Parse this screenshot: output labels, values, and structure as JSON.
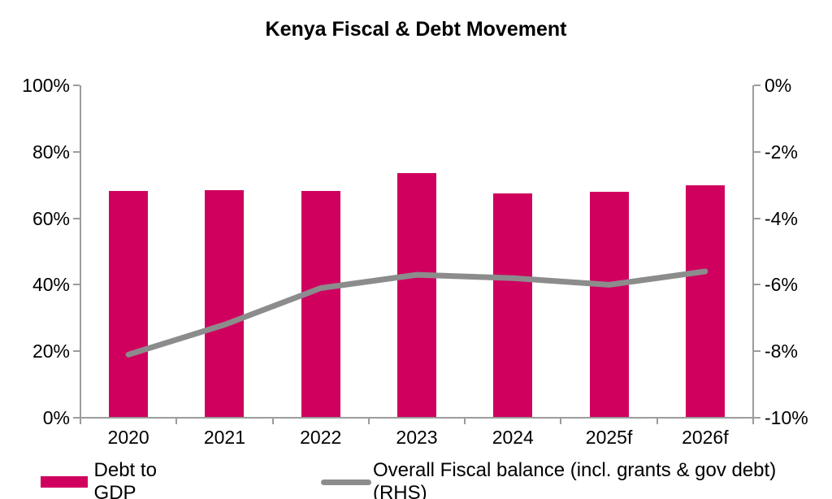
{
  "chart_data": {
    "type": "combo",
    "title": "Kenya Fiscal & Debt Movement",
    "categories": [
      "2020",
      "2021",
      "2022",
      "2023",
      "2024",
      "2025f",
      "2026f"
    ],
    "series": [
      {
        "name": "Debt to GDP",
        "type": "bar",
        "axis": "left",
        "values": [
          68.2,
          68.4,
          68.1,
          73.5,
          67.4,
          68.0,
          70.0
        ],
        "color": "#D0005F"
      },
      {
        "name": "Overall Fiscal balance (incl. grants & gov debt) (RHS)",
        "type": "line",
        "axis": "right",
        "values": [
          -8.1,
          -7.2,
          -6.1,
          -5.7,
          -5.8,
          -6.0,
          -5.6
        ],
        "color": "#8C8C8C"
      }
    ],
    "left_axis": {
      "min": 0,
      "max": 100,
      "tick_labels": [
        "100%",
        "80%",
        "60%",
        "40%",
        "20%",
        "0%"
      ]
    },
    "right_axis": {
      "min": -10,
      "max": 0,
      "tick_labels": [
        "0%",
        "-2%",
        "-4%",
        "-6%",
        "-8%",
        "-10%"
      ]
    },
    "legend": {
      "position": "bottom",
      "items": [
        {
          "label": "Debt to GDP",
          "swatch": "bar"
        },
        {
          "label": "Overall Fiscal balance (incl. grants & gov debt) (RHS)",
          "swatch": "line"
        }
      ]
    },
    "grid": false,
    "background": "#FFFFFF",
    "axis_color": "#9C9C9C",
    "text_color": "#000000"
  }
}
